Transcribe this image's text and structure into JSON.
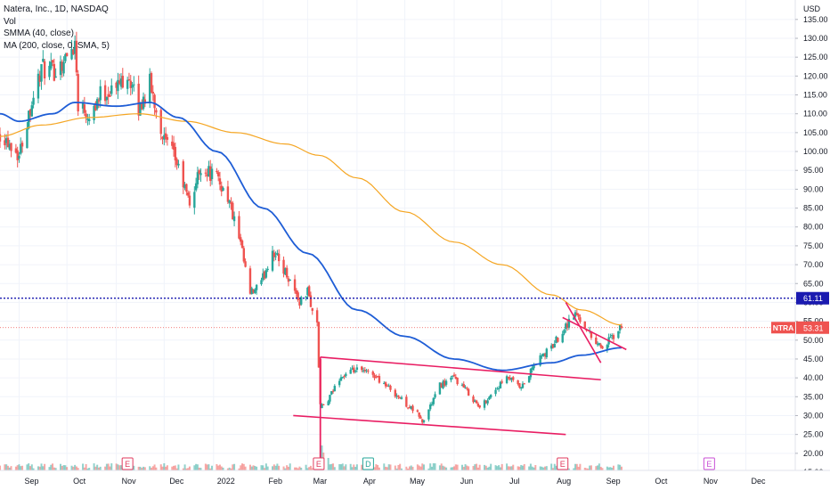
{
  "header": {
    "title": "Natera, Inc., 1D, NASDAQ",
    "volume_label": "Vol",
    "indicator_smma": "SMMA (40, close)",
    "indicator_ma": "MA (200, close, 0, SMA, 5)"
  },
  "axis": {
    "currency": "USD",
    "price_ticks": [
      "135.00",
      "130.00",
      "125.00",
      "120.00",
      "115.00",
      "110.00",
      "105.00",
      "100.00",
      "95.00",
      "90.00",
      "85.00",
      "80.00",
      "75.00",
      "70.00",
      "65.00",
      "60.00",
      "55.00",
      "50.00",
      "45.00",
      "40.00",
      "35.00",
      "30.00",
      "25.00",
      "20.00",
      "15.00"
    ],
    "time_ticks": [
      "Sep",
      "Oct",
      "Nov",
      "Dec",
      "2022",
      "Feb",
      "Mar",
      "Apr",
      "May",
      "Jun",
      "Jul",
      "Aug",
      "Sep",
      "Oct",
      "Nov",
      "Dec"
    ]
  },
  "markers": {
    "price_line_label": "61.11",
    "current_ticker": "NTRA",
    "current_price_label": "53.31"
  },
  "events": [
    {
      "label": "E",
      "month": "Nov 2021",
      "color": "#e03a5e"
    },
    {
      "label": "E",
      "month": "Mar 2022",
      "color": "#e03a5e"
    },
    {
      "label": "D",
      "month": "Apr 2022",
      "color": "#26a69a"
    },
    {
      "label": "E",
      "month": "Aug 2022",
      "color": "#e03a5e"
    },
    {
      "label": "E",
      "month": "Nov 2022",
      "color": "#c94fd6"
    }
  ],
  "chart_data": {
    "type": "candlestick",
    "symbol": "NTRA",
    "exchange": "NASDAQ",
    "interval": "1D",
    "ylim": [
      15,
      137
    ],
    "x_range": [
      "2021-08-20",
      "2023-01-01"
    ],
    "colors": {
      "up": "#26a69a",
      "down": "#ef5350",
      "smma": "#1e5dd6",
      "ma": "#f5a623",
      "trendline": "#e91e63",
      "price_line": "#1a1ab0"
    },
    "price_line": 61.11,
    "last_price": 53.31,
    "ohlc_anchors": [
      {
        "date": "2021-08-20",
        "close": 105
      },
      {
        "date": "2021-08-27",
        "close": 102
      },
      {
        "date": "2021-09-01",
        "close": 99
      },
      {
        "date": "2021-09-08",
        "close": 112
      },
      {
        "date": "2021-09-15",
        "close": 122
      },
      {
        "date": "2021-09-22",
        "close": 121
      },
      {
        "date": "2021-10-01",
        "close": 125
      },
      {
        "date": "2021-10-06",
        "close": 129
      },
      {
        "date": "2021-10-08",
        "close": 113
      },
      {
        "date": "2021-10-15",
        "close": 110
      },
      {
        "date": "2021-10-22",
        "close": 115
      },
      {
        "date": "2021-11-01",
        "close": 117
      },
      {
        "date": "2021-11-08",
        "close": 121
      },
      {
        "date": "2021-11-15",
        "close": 111
      },
      {
        "date": "2021-11-22",
        "close": 118
      },
      {
        "date": "2021-12-01",
        "close": 103
      },
      {
        "date": "2021-12-08",
        "close": 98
      },
      {
        "date": "2021-12-17",
        "close": 86
      },
      {
        "date": "2021-12-24",
        "close": 96
      },
      {
        "date": "2022-01-03",
        "close": 93
      },
      {
        "date": "2022-01-10",
        "close": 88
      },
      {
        "date": "2022-01-18",
        "close": 75
      },
      {
        "date": "2022-01-24",
        "close": 62
      },
      {
        "date": "2022-01-31",
        "close": 65
      },
      {
        "date": "2022-02-07",
        "close": 74
      },
      {
        "date": "2022-02-11",
        "close": 71
      },
      {
        "date": "2022-02-18",
        "close": 66
      },
      {
        "date": "2022-02-24",
        "close": 60
      },
      {
        "date": "2022-03-01",
        "close": 63
      },
      {
        "date": "2022-03-04",
        "close": 58
      },
      {
        "date": "2022-03-07",
        "close": 54
      },
      {
        "date": "2022-03-09",
        "close": 32
      },
      {
        "date": "2022-03-14",
        "close": 34
      },
      {
        "date": "2022-03-21",
        "close": 40
      },
      {
        "date": "2022-03-31",
        "close": 42
      },
      {
        "date": "2022-04-11",
        "close": 41
      },
      {
        "date": "2022-04-22",
        "close": 37
      },
      {
        "date": "2022-05-02",
        "close": 33
      },
      {
        "date": "2022-05-10",
        "close": 30
      },
      {
        "date": "2022-05-12",
        "close": 28
      },
      {
        "date": "2022-05-23",
        "close": 38
      },
      {
        "date": "2022-06-01",
        "close": 40
      },
      {
        "date": "2022-06-10",
        "close": 36
      },
      {
        "date": "2022-06-17",
        "close": 32
      },
      {
        "date": "2022-06-27",
        "close": 37
      },
      {
        "date": "2022-07-05",
        "close": 40
      },
      {
        "date": "2022-07-13",
        "close": 37
      },
      {
        "date": "2022-07-22",
        "close": 44
      },
      {
        "date": "2022-08-01",
        "close": 48
      },
      {
        "date": "2022-08-10",
        "close": 54
      },
      {
        "date": "2022-08-16",
        "close": 57
      },
      {
        "date": "2022-08-22",
        "close": 54
      },
      {
        "date": "2022-08-26",
        "close": 51
      },
      {
        "date": "2022-09-02",
        "close": 48
      },
      {
        "date": "2022-09-09",
        "close": 51
      },
      {
        "date": "2022-09-14",
        "close": 53.31
      }
    ],
    "smma_40": [
      {
        "date": "2021-08-20",
        "value": 110
      },
      {
        "date": "2021-09-01",
        "value": 108
      },
      {
        "date": "2021-09-22",
        "value": 110
      },
      {
        "date": "2021-10-06",
        "value": 113
      },
      {
        "date": "2021-11-01",
        "value": 112
      },
      {
        "date": "2021-11-22",
        "value": 113
      },
      {
        "date": "2021-12-10",
        "value": 109
      },
      {
        "date": "2022-01-03",
        "value": 100
      },
      {
        "date": "2022-02-01",
        "value": 85
      },
      {
        "date": "2022-03-01",
        "value": 73
      },
      {
        "date": "2022-04-01",
        "value": 58
      },
      {
        "date": "2022-05-01",
        "value": 51
      },
      {
        "date": "2022-06-01",
        "value": 45
      },
      {
        "date": "2022-07-01",
        "value": 42
      },
      {
        "date": "2022-08-01",
        "value": 44
      },
      {
        "date": "2022-08-20",
        "value": 46
      },
      {
        "date": "2022-09-14",
        "value": 48
      }
    ],
    "ma_200": [
      {
        "date": "2021-08-20",
        "value": 104
      },
      {
        "date": "2021-09-15",
        "value": 107
      },
      {
        "date": "2021-10-15",
        "value": 109
      },
      {
        "date": "2021-11-15",
        "value": 110
      },
      {
        "date": "2021-12-15",
        "value": 108
      },
      {
        "date": "2022-01-15",
        "value": 105
      },
      {
        "date": "2022-02-15",
        "value": 102
      },
      {
        "date": "2022-03-08",
        "value": 99
      },
      {
        "date": "2022-04-01",
        "value": 93
      },
      {
        "date": "2022-05-01",
        "value": 84
      },
      {
        "date": "2022-06-01",
        "value": 76
      },
      {
        "date": "2022-07-01",
        "value": 70
      },
      {
        "date": "2022-08-01",
        "value": 62
      },
      {
        "date": "2022-08-20",
        "value": 58
      },
      {
        "date": "2022-09-14",
        "value": 54
      }
    ],
    "trendlines": [
      {
        "from": {
          "date": "2022-03-09",
          "price": 45.5
        },
        "to": {
          "date": "2022-09-01",
          "price": 39.5
        }
      },
      {
        "from": {
          "date": "2022-02-20",
          "price": 30
        },
        "to": {
          "date": "2022-08-10",
          "price": 25
        }
      },
      {
        "from": {
          "date": "2022-08-10",
          "price": 60
        },
        "to": {
          "date": "2022-09-01",
          "price": 44
        }
      },
      {
        "from": {
          "date": "2022-08-08",
          "price": 56
        },
        "to": {
          "date": "2022-09-17",
          "price": 47.5
        }
      },
      {
        "from": {
          "date": "2022-03-09",
          "price": 45.5
        },
        "to": {
          "date": "2022-03-09",
          "price": 15.5
        }
      }
    ]
  }
}
